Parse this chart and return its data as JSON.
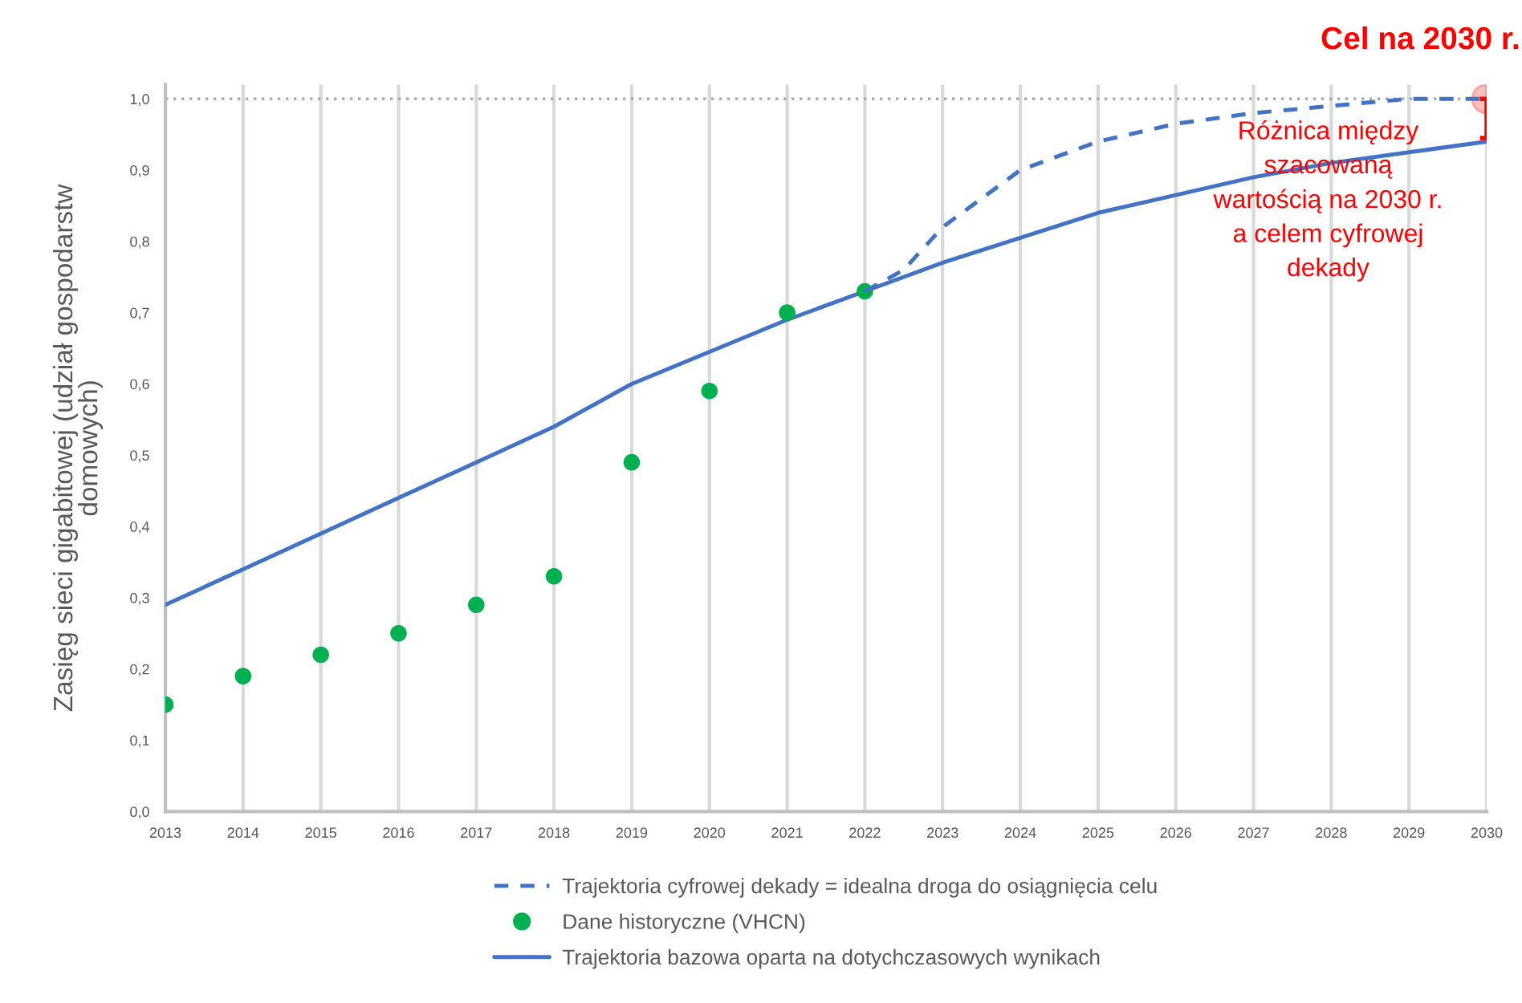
{
  "chart_data": {
    "type": "line",
    "ylabel": "Zasięg sieci gigabitowej (udział gospodarstw\ndomowych)",
    "xlim": [
      2013,
      2030
    ],
    "xticks": [
      2013,
      2014,
      2015,
      2016,
      2017,
      2018,
      2019,
      2020,
      2021,
      2022,
      2023,
      2024,
      2025,
      2026,
      2027,
      2028,
      2029,
      2030
    ],
    "ylim": [
      0,
      1.02
    ],
    "yticks": [
      {
        "value": 0.0,
        "label": "0,0"
      },
      {
        "value": 0.1,
        "label": "0,1"
      },
      {
        "value": 0.2,
        "label": "0,2"
      },
      {
        "value": 0.3,
        "label": "0,3"
      },
      {
        "value": 0.4,
        "label": "0,4"
      },
      {
        "value": 0.5,
        "label": "0,5"
      },
      {
        "value": 0.6,
        "label": "0,6"
      },
      {
        "value": 0.7,
        "label": "0,7"
      },
      {
        "value": 0.8,
        "label": "0,8"
      },
      {
        "value": 0.9,
        "label": "0,9"
      },
      {
        "value": 1.0,
        "label": "1,0"
      }
    ],
    "grid": "x",
    "legend": "bottom",
    "series": [
      {
        "name": "Trajektoria cyfrowej dekady = idealna droga do osiągnięcia celu",
        "color": "#4472c4",
        "line_style": "dashed",
        "x": [
          2022,
          2022.5,
          2023,
          2024,
          2025,
          2026,
          2027,
          2028,
          2029,
          2030
        ],
        "values": [
          0.73,
          0.76,
          0.82,
          0.9,
          0.94,
          0.965,
          0.98,
          0.99,
          1.0,
          1.0
        ]
      },
      {
        "type": "scatter",
        "name": "Dane historyczne (VHCN)",
        "color": "#00b050",
        "marker": "circle",
        "x": [
          2013,
          2014,
          2015,
          2016,
          2017,
          2018,
          2019,
          2020,
          2021,
          2022
        ],
        "values": [
          0.15,
          0.19,
          0.22,
          0.25,
          0.29,
          0.33,
          0.49,
          0.59,
          0.7,
          0.73
        ]
      },
      {
        "name": "Trajektoria bazowa oparta na dotychczasowych wynikach",
        "color": "#4472c4",
        "line_style": "solid",
        "x": [
          2013,
          2014,
          2015,
          2016,
          2017,
          2018,
          2019,
          2020,
          2021,
          2022,
          2023,
          2024,
          2025,
          2026,
          2027,
          2028,
          2029,
          2030
        ],
        "values": [
          0.29,
          0.34,
          0.39,
          0.44,
          0.49,
          0.54,
          0.6,
          0.645,
          0.69,
          0.73,
          0.77,
          0.805,
          0.84,
          0.865,
          0.89,
          0.91,
          0.925,
          0.94
        ]
      },
      {
        "type": "scatter",
        "color": "#ff0000",
        "marker": "circle",
        "x": [
          2030
        ],
        "values": [
          1.0
        ],
        "errors": [
          [
            0.945,
            1.0
          ]
        ]
      }
    ],
    "ref_lines": [
      {
        "axis": "y",
        "value": 1.0,
        "color": "#a6a6a6",
        "line_style": "dotted"
      }
    ],
    "annotations": [
      {
        "text": "Cel na 2030 r.",
        "x": 2030,
        "y": 1.0
      },
      "Różnica między\nszacowaną\nwartością na 2030 r.\na celem cyfrowej\ndekady"
    ]
  }
}
